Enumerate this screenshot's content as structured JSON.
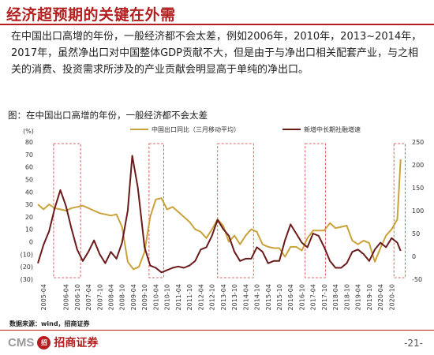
{
  "page": {
    "title": "经济超预期的关键在外需",
    "paragraph": "在中国出口高增的年份，一般经济都不会太差，例如2006年，2010年，2013~2014年，2017年，虽然净出口对中国整体GDP贡献不大，但是由于与净出口相关配套产业，与之相关的消费、投资需求所涉及的产业贡献会明显高于单纯的净出口。",
    "figure_caption": "图：在中国出口高增的年份，一般经济都不会太差",
    "source": "数据来源：wind，招商证券",
    "logo_text": "CMS",
    "logo_seal": "招",
    "logo_cn": "招商证券",
    "page_number": "-21-"
  },
  "chart_data": {
    "type": "line",
    "left_unit": "(%)",
    "left_ticks": [
      "80",
      "70",
      "60",
      "50",
      "40",
      "30",
      "20",
      "10",
      "0",
      "(10)",
      "(20)",
      "(30)"
    ],
    "left_range": [
      -30,
      80
    ],
    "right_ticks": [
      "250",
      "200",
      "150",
      "100",
      "50",
      "0",
      "-50"
    ],
    "right_range": [
      -50,
      250
    ],
    "x_ticks": [
      "2005-04",
      "2006-04",
      "2006-10",
      "2007-04",
      "2007-10",
      "2008-04",
      "2008-10",
      "2009-04",
      "2009-10",
      "2010-04",
      "2010-10",
      "2011-04",
      "2011-10",
      "2012-04",
      "2012-10",
      "2013-04",
      "2013-10",
      "2014-04",
      "2014-10",
      "2015-04",
      "2015-10",
      "2016-04",
      "2016-10",
      "2017-04",
      "2017-10",
      "2018-04",
      "2018-10",
      "2019-04",
      "2019-10",
      "2020-04",
      "2020-10"
    ],
    "x_range": [
      2005.0,
      2021.3
    ],
    "series": [
      {
        "name": "中国出口同比（三月移动平均）",
        "axis": "left",
        "color": "#c9a23a",
        "points": [
          [
            2005.0,
            30
          ],
          [
            2005.25,
            26
          ],
          [
            2005.5,
            30
          ],
          [
            2005.75,
            27
          ],
          [
            2006.0,
            26
          ],
          [
            2006.25,
            25
          ],
          [
            2006.5,
            27
          ],
          [
            2006.75,
            28
          ],
          [
            2007.0,
            29
          ],
          [
            2007.25,
            27
          ],
          [
            2007.5,
            25
          ],
          [
            2007.75,
            23
          ],
          [
            2008.0,
            22
          ],
          [
            2008.25,
            21
          ],
          [
            2008.5,
            22
          ],
          [
            2008.75,
            12
          ],
          [
            2009.0,
            -16
          ],
          [
            2009.25,
            -22
          ],
          [
            2009.5,
            -20
          ],
          [
            2009.75,
            -8
          ],
          [
            2010.0,
            20
          ],
          [
            2010.25,
            34
          ],
          [
            2010.5,
            35
          ],
          [
            2010.75,
            26
          ],
          [
            2011.0,
            28
          ],
          [
            2011.25,
            24
          ],
          [
            2011.5,
            20
          ],
          [
            2011.75,
            16
          ],
          [
            2012.0,
            10
          ],
          [
            2012.25,
            8
          ],
          [
            2012.5,
            3
          ],
          [
            2012.75,
            10
          ],
          [
            2013.0,
            18
          ],
          [
            2013.25,
            13
          ],
          [
            2013.5,
            0
          ],
          [
            2013.75,
            5
          ],
          [
            2014.0,
            -2
          ],
          [
            2014.25,
            5
          ],
          [
            2014.5,
            10
          ],
          [
            2014.75,
            8
          ],
          [
            2015.0,
            -2
          ],
          [
            2015.25,
            -4
          ],
          [
            2015.5,
            -5
          ],
          [
            2015.75,
            -5
          ],
          [
            2016.0,
            -12
          ],
          [
            2016.25,
            -4
          ],
          [
            2016.5,
            -4
          ],
          [
            2016.75,
            -7
          ],
          [
            2017.0,
            3
          ],
          [
            2017.25,
            9
          ],
          [
            2017.5,
            9
          ],
          [
            2017.75,
            9
          ],
          [
            2018.0,
            15
          ],
          [
            2018.25,
            11
          ],
          [
            2018.5,
            12
          ],
          [
            2018.75,
            13
          ],
          [
            2019.0,
            1
          ],
          [
            2019.25,
            -2
          ],
          [
            2019.5,
            1
          ],
          [
            2019.75,
            -1
          ],
          [
            2020.0,
            -16
          ],
          [
            2020.25,
            -5
          ],
          [
            2020.5,
            5
          ],
          [
            2020.75,
            10
          ],
          [
            2021.0,
            18
          ],
          [
            2021.15,
            66
          ]
        ]
      },
      {
        "name": "新增中长期社融增速",
        "axis": "right",
        "color": "#6b1a1a",
        "points": [
          [
            2005.0,
            -15
          ],
          [
            2005.25,
            25
          ],
          [
            2005.5,
            55
          ],
          [
            2005.75,
            105
          ],
          [
            2006.0,
            145
          ],
          [
            2006.25,
            110
          ],
          [
            2006.5,
            60
          ],
          [
            2006.75,
            15
          ],
          [
            2007.0,
            -10
          ],
          [
            2007.25,
            10
          ],
          [
            2007.5,
            35
          ],
          [
            2007.75,
            5
          ],
          [
            2008.0,
            -15
          ],
          [
            2008.25,
            10
          ],
          [
            2008.5,
            -5
          ],
          [
            2008.75,
            30
          ],
          [
            2009.0,
            100
          ],
          [
            2009.2,
            220
          ],
          [
            2009.45,
            150
          ],
          [
            2009.75,
            20
          ],
          [
            2010.0,
            -20
          ],
          [
            2010.25,
            -25
          ],
          [
            2010.5,
            -35
          ],
          [
            2010.75,
            -30
          ],
          [
            2011.0,
            -25
          ],
          [
            2011.25,
            -22
          ],
          [
            2011.5,
            -25
          ],
          [
            2011.75,
            -20
          ],
          [
            2012.0,
            -10
          ],
          [
            2012.25,
            15
          ],
          [
            2012.5,
            20
          ],
          [
            2012.75,
            45
          ],
          [
            2013.0,
            80
          ],
          [
            2013.25,
            60
          ],
          [
            2013.5,
            45
          ],
          [
            2013.75,
            10
          ],
          [
            2014.0,
            -10
          ],
          [
            2014.25,
            -5
          ],
          [
            2014.5,
            -5
          ],
          [
            2014.75,
            20
          ],
          [
            2015.0,
            10
          ],
          [
            2015.25,
            -15
          ],
          [
            2015.5,
            -10
          ],
          [
            2015.75,
            -10
          ],
          [
            2016.0,
            35
          ],
          [
            2016.25,
            70
          ],
          [
            2016.5,
            50
          ],
          [
            2016.75,
            30
          ],
          [
            2017.0,
            20
          ],
          [
            2017.25,
            50
          ],
          [
            2017.5,
            45
          ],
          [
            2017.75,
            20
          ],
          [
            2018.0,
            -10
          ],
          [
            2018.25,
            -25
          ],
          [
            2018.5,
            -25
          ],
          [
            2018.75,
            -15
          ],
          [
            2019.0,
            10
          ],
          [
            2019.25,
            15
          ],
          [
            2019.5,
            5
          ],
          [
            2019.75,
            -10
          ],
          [
            2020.0,
            15
          ],
          [
            2020.25,
            30
          ],
          [
            2020.5,
            20
          ],
          [
            2020.75,
            40
          ],
          [
            2021.0,
            30
          ],
          [
            2021.15,
            12
          ]
        ]
      }
    ],
    "highlight_boxes": [
      [
        2005.7,
        2006.9
      ],
      [
        2009.95,
        2010.6
      ],
      [
        2013.0,
        2014.6
      ],
      [
        2016.9,
        2017.8
      ],
      [
        2020.85,
        2021.35
      ]
    ],
    "grid": false,
    "legend_position": "top"
  }
}
